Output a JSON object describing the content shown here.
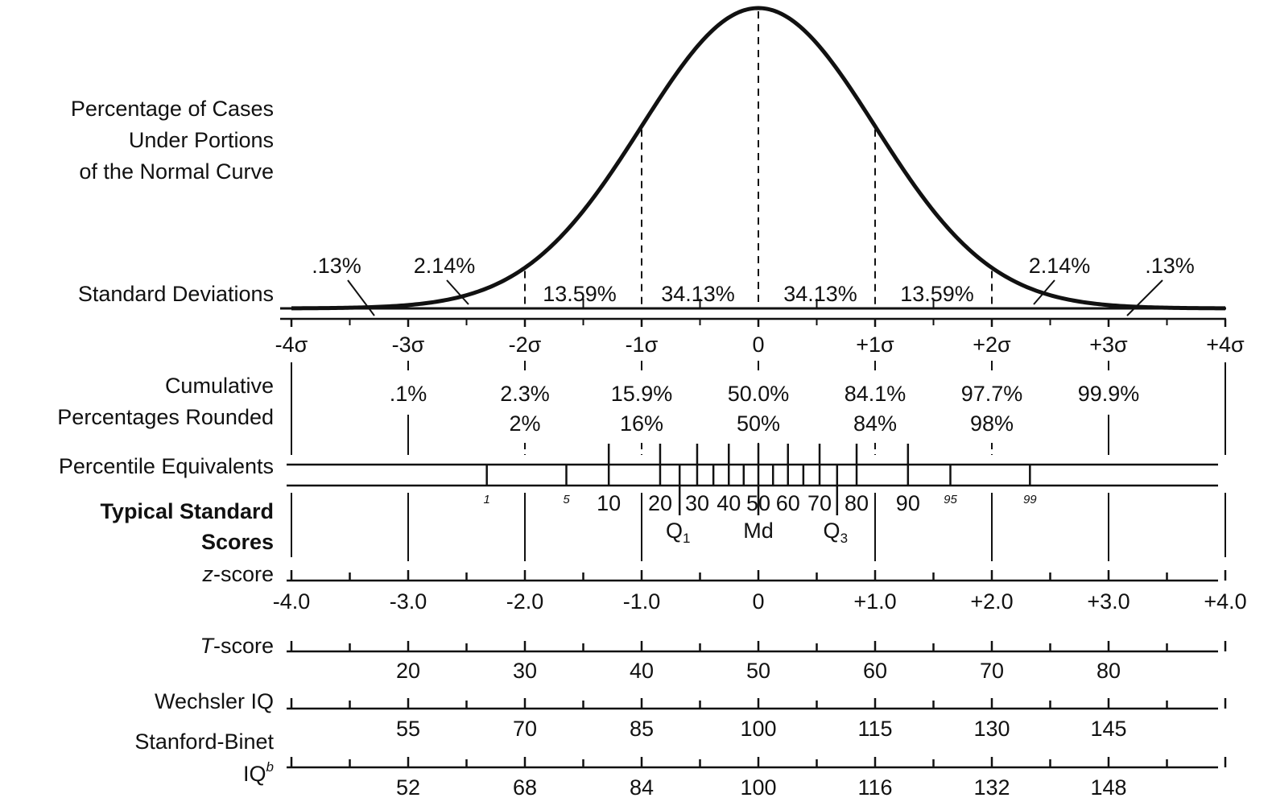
{
  "colors": {
    "ink": "#111111",
    "background": "#ffffff"
  },
  "chart_data": {
    "type": "line",
    "curve": "normal-density",
    "x_range": [
      -4,
      4
    ],
    "row_labels": {
      "pct_cases": [
        "Percentage of Cases",
        "Under Portions",
        "of the Normal Curve"
      ],
      "std_dev": "Standard Deviations",
      "cumulative": [
        "Cumulative",
        "Percentages Rounded"
      ],
      "percentile": "Percentile Equivalents",
      "typical": [
        "Typical Standard",
        "Scores"
      ],
      "z_prefix": "z",
      "z_suffix": "-score",
      "t_prefix": "T",
      "t_suffix": "-score",
      "wechsler": "Wechsler IQ",
      "stanford_line1": "Stanford-Binet",
      "stanford_iq": "IQ",
      "stanford_sup": "b"
    },
    "area_percentages": [
      {
        "from": -4,
        "to": -3,
        "label": ".13%"
      },
      {
        "from": -3,
        "to": -2,
        "label": "2.14%"
      },
      {
        "from": -2,
        "to": -1,
        "label": "13.59%"
      },
      {
        "from": -1,
        "to": 0,
        "label": "34.13%"
      },
      {
        "from": 0,
        "to": 1,
        "label": "34.13%"
      },
      {
        "from": 1,
        "to": 2,
        "label": "13.59%"
      },
      {
        "from": 2,
        "to": 3,
        "label": "2.14%"
      },
      {
        "from": 3,
        "to": 4,
        "label": ".13%"
      }
    ],
    "sd_ticks": [
      {
        "z": -4,
        "label": "-4σ"
      },
      {
        "z": -3,
        "label": "-3σ"
      },
      {
        "z": -2,
        "label": "-2σ"
      },
      {
        "z": -1,
        "label": "-1σ"
      },
      {
        "z": 0,
        "label": "0"
      },
      {
        "z": 1,
        "label": "+1σ"
      },
      {
        "z": 2,
        "label": "+2σ"
      },
      {
        "z": 3,
        "label": "+3σ"
      },
      {
        "z": 4,
        "label": "+4σ"
      }
    ],
    "cumulative": [
      {
        "z": -3,
        "value": ".1%",
        "rounded": ""
      },
      {
        "z": -2,
        "value": "2.3%",
        "rounded": "2%"
      },
      {
        "z": -1,
        "value": "15.9%",
        "rounded": "16%"
      },
      {
        "z": 0,
        "value": "50.0%",
        "rounded": "50%"
      },
      {
        "z": 1,
        "value": "84.1%",
        "rounded": "84%"
      },
      {
        "z": 2,
        "value": "97.7%",
        "rounded": "98%"
      },
      {
        "z": 3,
        "value": "99.9%",
        "rounded": ""
      }
    ],
    "percentiles": [
      {
        "p": 1,
        "label": "1",
        "small": true
      },
      {
        "p": 5,
        "label": "5",
        "small": true
      },
      {
        "p": 10,
        "label": "10"
      },
      {
        "p": 20,
        "label": "20"
      },
      {
        "p": 25,
        "label": ""
      },
      {
        "p": 30,
        "label": "30"
      },
      {
        "p": 35,
        "label": ""
      },
      {
        "p": 40,
        "label": "40"
      },
      {
        "p": 45,
        "label": ""
      },
      {
        "p": 50,
        "label": "50"
      },
      {
        "p": 55,
        "label": ""
      },
      {
        "p": 60,
        "label": "60"
      },
      {
        "p": 65,
        "label": ""
      },
      {
        "p": 70,
        "label": "70"
      },
      {
        "p": 75,
        "label": ""
      },
      {
        "p": 80,
        "label": "80"
      },
      {
        "p": 90,
        "label": "90"
      },
      {
        "p": 95,
        "label": "95",
        "small": true
      },
      {
        "p": 99,
        "label": "99",
        "small": true
      }
    ],
    "quartiles": [
      {
        "p": 25,
        "label": "Q",
        "sub": "1"
      },
      {
        "p": 50,
        "label": "Md",
        "sub": ""
      },
      {
        "p": 75,
        "label": "Q",
        "sub": "3"
      }
    ],
    "z_scores": [
      {
        "z": -4,
        "label": "-4.0"
      },
      {
        "z": -3,
        "label": "-3.0"
      },
      {
        "z": -2,
        "label": "-2.0"
      },
      {
        "z": -1,
        "label": "-1.0"
      },
      {
        "z": 0,
        "label": "0"
      },
      {
        "z": 1,
        "label": "+1.0"
      },
      {
        "z": 2,
        "label": "+2.0"
      },
      {
        "z": 3,
        "label": "+3.0"
      },
      {
        "z": 4,
        "label": "+4.0"
      }
    ],
    "t_scores": [
      {
        "z": -3,
        "label": "20"
      },
      {
        "z": -2,
        "label": "30"
      },
      {
        "z": -1,
        "label": "40"
      },
      {
        "z": 0,
        "label": "50"
      },
      {
        "z": 1,
        "label": "60"
      },
      {
        "z": 2,
        "label": "70"
      },
      {
        "z": 3,
        "label": "80"
      }
    ],
    "wechsler_iq": [
      {
        "z": -3,
        "label": "55"
      },
      {
        "z": -2,
        "label": "70"
      },
      {
        "z": -1,
        "label": "85"
      },
      {
        "z": 0,
        "label": "100"
      },
      {
        "z": 1,
        "label": "115"
      },
      {
        "z": 2,
        "label": "130"
      },
      {
        "z": 3,
        "label": "145"
      }
    ],
    "stanford_binet_iq": [
      {
        "z": -3,
        "label": "52"
      },
      {
        "z": -2,
        "label": "68"
      },
      {
        "z": -1,
        "label": "84"
      },
      {
        "z": 0,
        "label": "100"
      },
      {
        "z": 1,
        "label": "116"
      },
      {
        "z": 2,
        "label": "132"
      },
      {
        "z": 3,
        "label": "148"
      }
    ]
  }
}
